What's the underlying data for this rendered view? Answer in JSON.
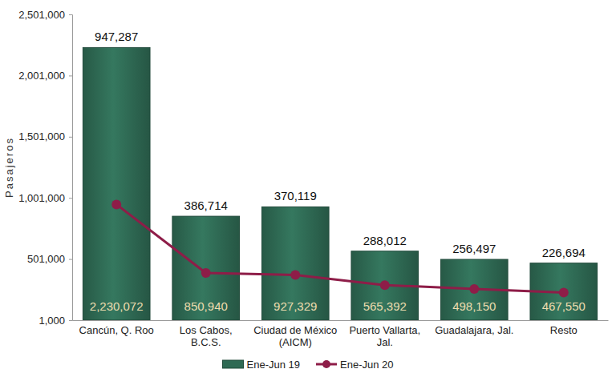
{
  "chart_data": {
    "type": "bar",
    "ylabel": "Pasajeros",
    "categories": [
      "Cancún, Q. Roo",
      "Los Cabos, B.C.S.",
      "Ciudad de México (AICM)",
      "Puerto Vallarta, Jal.",
      "Guadalajara, Jal.",
      "Resto"
    ],
    "series": [
      {
        "name": "Ene-Jun 19",
        "type": "bar",
        "color": "#2f6a54",
        "values": [
          2230072,
          850940,
          927329,
          565392,
          498150,
          467550
        ],
        "value_labels": [
          "2,230,072",
          "850,940",
          "927,329",
          "565,392",
          "498,150",
          "467,550"
        ]
      },
      {
        "name": "Ene-Jun 20",
        "type": "line",
        "color": "#8e1d48",
        "marker": "circle",
        "values": [
          947287,
          386714,
          370119,
          288012,
          256497,
          226694
        ],
        "value_labels": [
          "947,287",
          "386,714",
          "370,119",
          "288,012",
          "256,497",
          "226,694"
        ]
      }
    ],
    "ylim": [
      1000,
      2501000
    ],
    "yticks": [
      {
        "value": 1000,
        "label": "1,000"
      },
      {
        "value": 501000,
        "label": "501,000"
      },
      {
        "value": 1001000,
        "label": "1,001,000"
      },
      {
        "value": 1501000,
        "label": "1,501,000"
      },
      {
        "value": 2001000,
        "label": "2,001,000"
      },
      {
        "value": 2501000,
        "label": "2,501,000"
      }
    ],
    "grid": false,
    "legend": "bottom",
    "data_labels": true
  }
}
